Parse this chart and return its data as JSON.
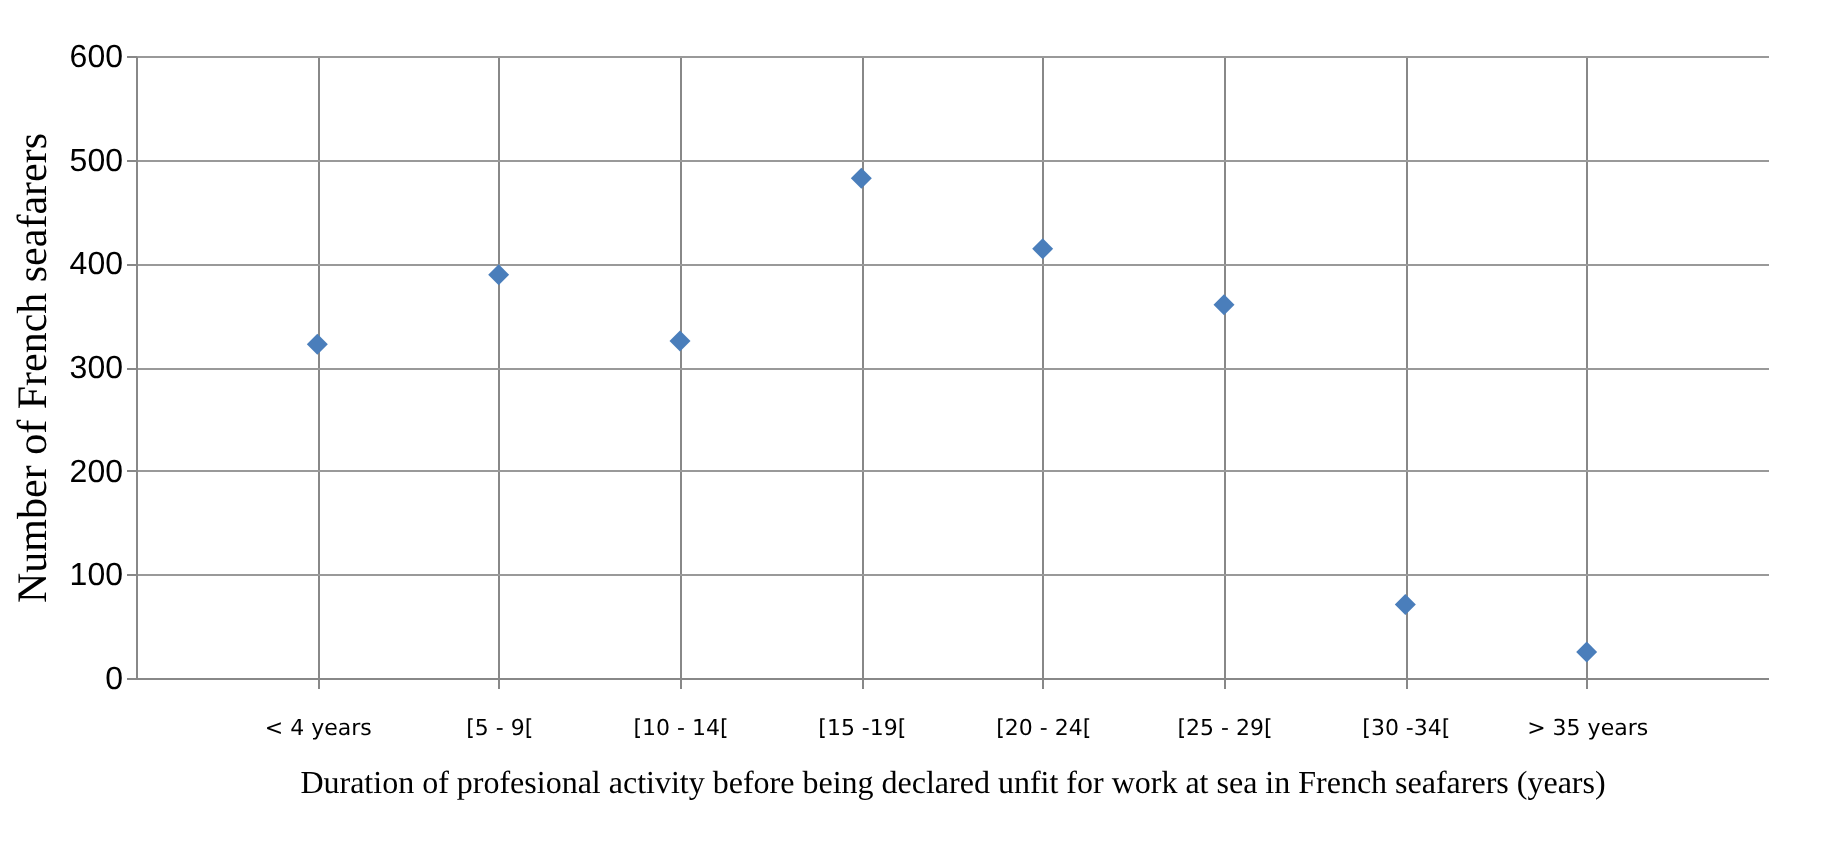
{
  "chart_data": {
    "type": "scatter",
    "xlabel": "Duration of profesional activity before being declared unfit for work at sea in French seafarers (years)",
    "ylabel": "Number of French seafarers",
    "categories": [
      "< 4 years",
      "[5 - 9[",
      "[10 - 14[",
      "[15 -19[",
      "[20 - 24[",
      "[25 - 29[",
      "[30 -34[",
      "> 35 years"
    ],
    "values": [
      322,
      389,
      325,
      482,
      414,
      360,
      71,
      25
    ],
    "color": "#4a7ebb",
    "marker": "diamond",
    "ylim": [
      0,
      600
    ],
    "yticks": [
      0,
      100,
      200,
      300,
      400,
      500,
      600
    ],
    "grid": true
  }
}
